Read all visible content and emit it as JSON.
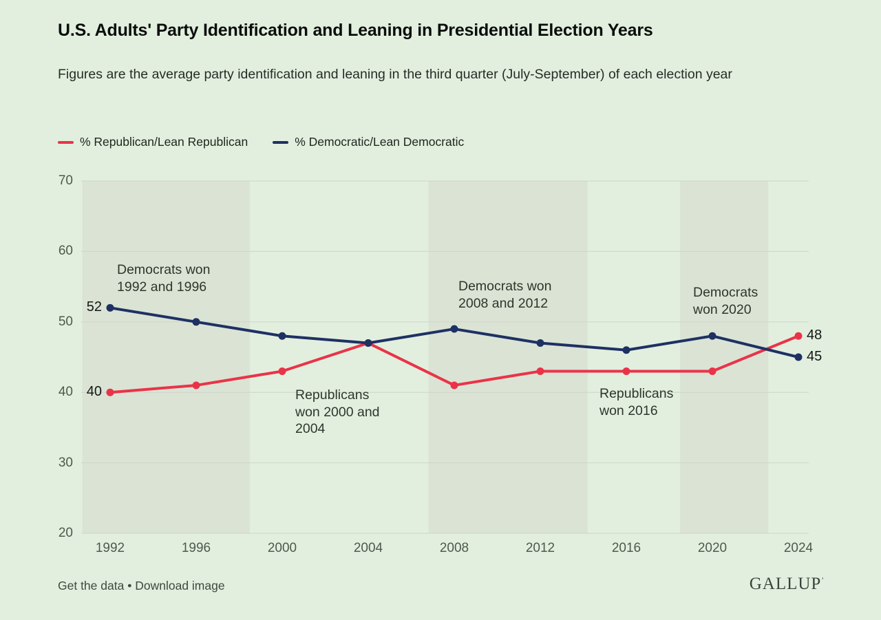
{
  "header": {
    "title": "U.S. Adults' Party Identification and Leaning in Presidential Election Years",
    "subtitle": "Figures are the average party identification and leaning in the third quarter (July-September) of each election year"
  },
  "footer": {
    "get_data_label": "Get the data",
    "separator": "•",
    "download_label": "Download image",
    "logo_text": "GALLUP",
    "logo_mark": "’"
  },
  "colors": {
    "background": "#e2efdf",
    "band": "#dbe3d5",
    "gridline": "#ccd6c9",
    "republican": "#ea3348",
    "democratic": "#1e3163"
  },
  "chart_data": {
    "type": "line",
    "title": "U.S. Adults' Party Identification and Leaning in Presidential Election Years",
    "x": [
      1992,
      1996,
      2000,
      2004,
      2008,
      2012,
      2016,
      2020,
      2024
    ],
    "series": [
      {
        "name": "% Republican/Lean Republican",
        "color": "#ea3348",
        "values": [
          40,
          41,
          43,
          47,
          41,
          43,
          43,
          43,
          48
        ]
      },
      {
        "name": "% Democratic/Lean Democratic",
        "color": "#1e3163",
        "values": [
          52,
          50,
          48,
          47,
          49,
          47,
          46,
          48,
          45
        ]
      }
    ],
    "ylim": [
      20,
      70
    ],
    "yticks": [
      20,
      30,
      40,
      50,
      60,
      70
    ],
    "grid": "horizontal",
    "legend_position": "top-left",
    "bands_note": "darker vertical bands highlight Democratic-won elections",
    "bands": [
      {
        "from": 1990.7,
        "to": 1998.5
      },
      {
        "from": 2006.8,
        "to": 2014.2
      },
      {
        "from": 2018.5,
        "to": 2022.6
      }
    ],
    "annotations": [
      {
        "text": "Democrats won\n1992 and 1996"
      },
      {
        "text": "Republicans\nwon 2000 and\n2004"
      },
      {
        "text": "Democrats won\n2008 and 2012"
      },
      {
        "text": "Republicans\nwon 2016"
      },
      {
        "text": "Democrats\nwon 2020"
      }
    ]
  }
}
